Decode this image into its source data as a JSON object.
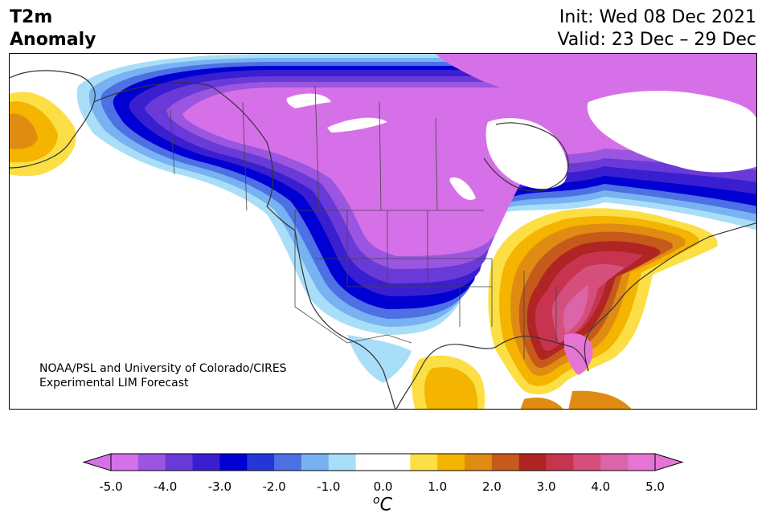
{
  "title": {
    "line1": "T2m",
    "line2": "Anomaly"
  },
  "dates": {
    "init": "Init: Wed 08 Dec 2021",
    "valid": "Valid: 23 Dec – 29 Dec"
  },
  "credit": {
    "line1": "NOAA/PSL and University of Colorado/CIRES",
    "line2": "Experimental LIM Forecast"
  },
  "colorbar": {
    "ticks": [
      "-5.0",
      "-4.0",
      "-3.0",
      "-2.0",
      "-1.0",
      "0.0",
      "1.0",
      "2.0",
      "3.0",
      "4.0",
      "5.0"
    ],
    "unit_base": "C",
    "unit_sup": "o",
    "colors": [
      "#d670e8",
      "#9a56e0",
      "#6a3ad8",
      "#3a1fd0",
      "#0000d2",
      "#2436d8",
      "#4d70e4",
      "#78b2f2",
      "#a9def8",
      "#ffffff",
      "#ffffff",
      "#fbdf44",
      "#f4b400",
      "#e08c12",
      "#c65a1a",
      "#b02424",
      "#c83450",
      "#d44f7c",
      "#dc64a8",
      "#e674d4"
    ],
    "under_color": "#d670e8",
    "over_color": "#e674d4"
  }
}
